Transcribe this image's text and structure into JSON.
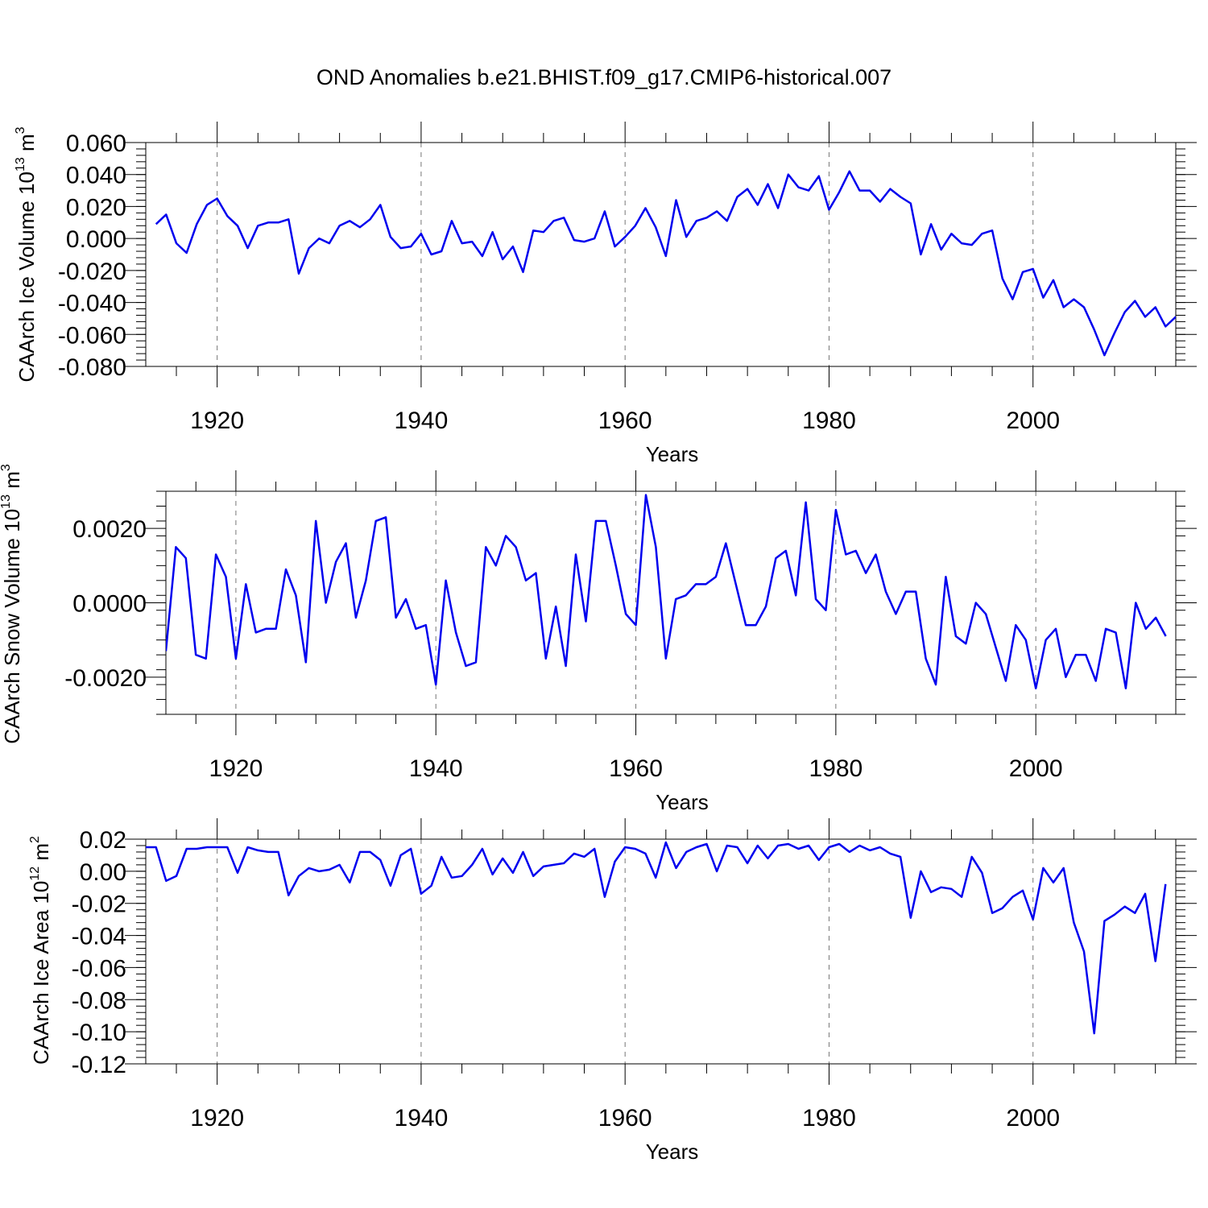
{
  "title": "OND Anomalies b.e21.BHIST.f09_g17.CMIP6-historical.007",
  "line_color": "#0000ee",
  "chart_data": [
    {
      "type": "line",
      "name": "ice-volume",
      "ylabel": "CAArch Ice Volume 10",
      "ylabel_exp": "13",
      "ylabel_unit": " m",
      "ylabel_unit_exp": "3",
      "xlabel": "Years",
      "xlim": [
        1913,
        2014
      ],
      "ylim": [
        -0.08,
        0.06
      ],
      "xticks": [
        1920,
        1940,
        1960,
        1980,
        2000
      ],
      "xtick_labels": [
        "1920",
        "1940",
        "1960",
        "1980",
        "2000"
      ],
      "yticks": [
        0.06,
        0.04,
        0.02,
        0.0,
        -0.02,
        -0.04,
        -0.06,
        -0.08
      ],
      "ytick_labels": [
        "0.060",
        "0.040",
        "0.020",
        "0.000",
        "-0.020",
        "-0.040",
        "-0.060",
        "-0.080"
      ],
      "x_start": 1914,
      "values": [
        0.009,
        0.015,
        -0.003,
        -0.009,
        0.009,
        0.021,
        0.025,
        0.014,
        0.008,
        -0.006,
        0.008,
        0.01,
        0.01,
        0.012,
        -0.022,
        -0.006,
        0.0,
        -0.003,
        0.008,
        0.011,
        0.007,
        0.012,
        0.021,
        0.001,
        -0.006,
        -0.005,
        0.003,
        -0.01,
        -0.008,
        0.011,
        -0.003,
        -0.002,
        -0.011,
        0.004,
        -0.013,
        -0.005,
        -0.021,
        0.005,
        0.004,
        0.011,
        0.013,
        -0.001,
        -0.002,
        0.0,
        0.017,
        -0.005,
        0.001,
        0.008,
        0.019,
        0.007,
        -0.011,
        0.024,
        0.001,
        0.011,
        0.013,
        0.017,
        0.011,
        0.026,
        0.031,
        0.021,
        0.034,
        0.019,
        0.04,
        0.032,
        0.03,
        0.039,
        0.018,
        0.029,
        0.042,
        0.03,
        0.03,
        0.023,
        0.031,
        0.026,
        0.022,
        -0.01,
        0.009,
        -0.007,
        0.003,
        -0.003,
        -0.004,
        0.003,
        0.005,
        -0.025,
        -0.038,
        -0.021,
        -0.019,
        -0.037,
        -0.026,
        -0.043,
        -0.038,
        -0.043,
        -0.057,
        -0.073,
        -0.059,
        -0.046,
        -0.039,
        -0.049,
        -0.043,
        -0.055,
        -0.049
      ]
    },
    {
      "type": "line",
      "name": "snow-volume",
      "ylabel": "CAArch Snow Volume 10",
      "ylabel_exp": "13",
      "ylabel_unit": " m",
      "ylabel_unit_exp": "3",
      "xlabel": "Years",
      "xlim": [
        1913,
        2014
      ],
      "ylim": [
        -0.003,
        0.003
      ],
      "xticks": [
        1920,
        1940,
        1960,
        1980,
        2000
      ],
      "xtick_labels": [
        "1920",
        "1940",
        "1960",
        "1980",
        "2000"
      ],
      "yticks": [
        0.002,
        0.0,
        -0.002
      ],
      "ytick_labels": [
        "0.0020",
        "0.0000",
        "-0.0020"
      ],
      "x_start": 1913,
      "values": [
        -0.0013,
        0.0015,
        0.0012,
        -0.0014,
        -0.0015,
        0.0013,
        0.0007,
        -0.0015,
        0.0005,
        -0.0008,
        -0.0007,
        -0.0007,
        0.0009,
        0.0002,
        -0.0016,
        0.0022,
        0.0,
        0.0011,
        0.0016,
        -0.0004,
        0.0006,
        0.0022,
        0.0023,
        -0.0004,
        0.0001,
        -0.0007,
        -0.0006,
        -0.0022,
        0.0006,
        -0.0008,
        -0.0017,
        -0.0016,
        0.0015,
        0.001,
        0.0018,
        0.0015,
        0.0006,
        0.0008,
        -0.0015,
        -0.0001,
        -0.0017,
        0.0013,
        -0.0005,
        0.0022,
        0.0022,
        0.001,
        -0.0003,
        -0.0006,
        0.0029,
        0.0015,
        -0.0015,
        0.0001,
        0.0002,
        0.0005,
        0.0005,
        0.0007,
        0.0016,
        0.0005,
        -0.0006,
        -0.0006,
        -0.0001,
        0.0012,
        0.0014,
        0.0002,
        0.0027,
        0.0001,
        -0.0002,
        0.0025,
        0.0013,
        0.0014,
        0.0008,
        0.0013,
        0.0003,
        -0.0003,
        0.0003,
        0.0003,
        -0.0015,
        -0.0022,
        0.0007,
        -0.0009,
        -0.0011,
        0.0,
        -0.0003,
        -0.0012,
        -0.0021,
        -0.0006,
        -0.001,
        -0.0023,
        -0.001,
        -0.0007,
        -0.002,
        -0.0014,
        -0.0014,
        -0.0021,
        -0.0007,
        -0.0008,
        -0.0023,
        0.0,
        -0.0007,
        -0.0004,
        -0.0009
      ]
    },
    {
      "type": "line",
      "name": "ice-area",
      "ylabel": "CAArch Ice Area 10",
      "ylabel_exp": "12",
      "ylabel_unit": " m",
      "ylabel_unit_exp": "2",
      "xlabel": "Years",
      "xlim": [
        1913,
        2014
      ],
      "ylim": [
        -0.12,
        0.02
      ],
      "xticks": [
        1920,
        1940,
        1960,
        1980,
        2000
      ],
      "xtick_labels": [
        "1920",
        "1940",
        "1960",
        "1980",
        "2000"
      ],
      "yticks": [
        0.02,
        0.0,
        -0.02,
        -0.04,
        -0.06,
        -0.08,
        -0.1,
        -0.12
      ],
      "ytick_labels": [
        "0.02",
        "0.00",
        "-0.02",
        "-0.04",
        "-0.06",
        "-0.08",
        "-0.10",
        "-0.12"
      ],
      "x_start": 1913,
      "values": [
        0.015,
        0.015,
        -0.006,
        -0.003,
        0.014,
        0.014,
        0.015,
        0.015,
        0.015,
        -0.001,
        0.015,
        0.013,
        0.012,
        0.012,
        -0.015,
        -0.003,
        0.002,
        0.0,
        0.001,
        0.004,
        -0.007,
        0.012,
        0.012,
        0.007,
        -0.009,
        0.01,
        0.014,
        -0.014,
        -0.009,
        0.009,
        -0.004,
        -0.003,
        0.004,
        0.014,
        -0.002,
        0.008,
        -0.001,
        0.012,
        -0.003,
        0.003,
        0.004,
        0.005,
        0.011,
        0.009,
        0.014,
        -0.016,
        0.006,
        0.015,
        0.014,
        0.011,
        -0.004,
        0.018,
        0.002,
        0.012,
        0.015,
        0.017,
        0.0,
        0.016,
        0.015,
        0.005,
        0.016,
        0.008,
        0.016,
        0.017,
        0.014,
        0.016,
        0.007,
        0.015,
        0.017,
        0.012,
        0.016,
        0.013,
        0.015,
        0.011,
        0.009,
        -0.029,
        0.0,
        -0.013,
        -0.01,
        -0.011,
        -0.016,
        0.009,
        -0.001,
        -0.026,
        -0.023,
        -0.016,
        -0.012,
        -0.03,
        0.002,
        -0.007,
        0.002,
        -0.032,
        -0.05,
        -0.101,
        -0.031,
        -0.027,
        -0.022,
        -0.026,
        -0.014,
        -0.056,
        -0.008
      ]
    }
  ]
}
